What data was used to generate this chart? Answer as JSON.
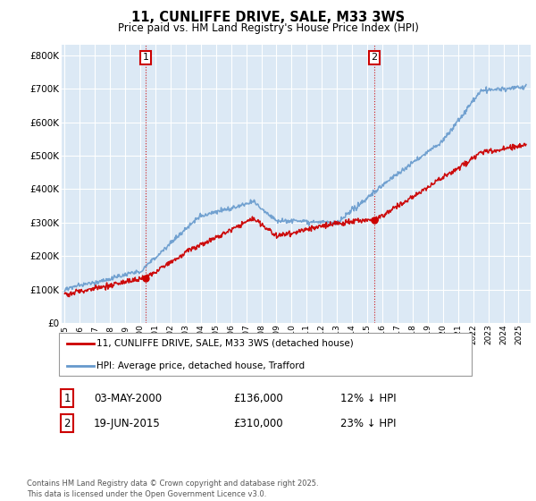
{
  "title": "11, CUNLIFFE DRIVE, SALE, M33 3WS",
  "subtitle": "Price paid vs. HM Land Registry's House Price Index (HPI)",
  "legend_line1": "11, CUNLIFFE DRIVE, SALE, M33 3WS (detached house)",
  "legend_line2": "HPI: Average price, detached house, Trafford",
  "annotation1_label": "1",
  "annotation1_date": "03-MAY-2000",
  "annotation1_price": "£136,000",
  "annotation1_hpi": "12% ↓ HPI",
  "annotation1_year": 2000.35,
  "annotation1_value": 136000,
  "annotation2_label": "2",
  "annotation2_date": "19-JUN-2015",
  "annotation2_price": "£310,000",
  "annotation2_hpi": "23% ↓ HPI",
  "annotation2_year": 2015.47,
  "annotation2_value": 310000,
  "ytick_values": [
    0,
    100000,
    200000,
    300000,
    400000,
    500000,
    600000,
    700000,
    800000
  ],
  "xlim": [
    1994.8,
    2025.8
  ],
  "ylim": [
    0,
    830000
  ],
  "background_color": "#ffffff",
  "plot_bg_color": "#dce9f5",
  "grid_color": "#ffffff",
  "line_color_red": "#cc0000",
  "line_color_blue": "#6699cc",
  "annotation_box_color": "#cc0000",
  "footer_text": "Contains HM Land Registry data © Crown copyright and database right 2025.\nThis data is licensed under the Open Government Licence v3.0."
}
